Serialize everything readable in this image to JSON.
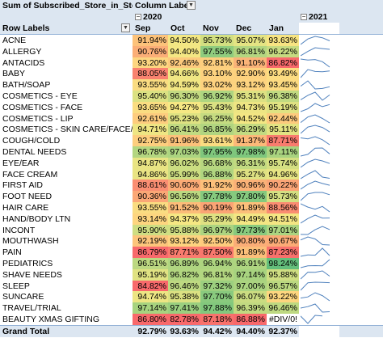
{
  "pivot": {
    "values_title": "Sum of Subscribed_Store_in_Stock",
    "column_labels": "Column Labels",
    "row_labels": "Row Labels",
    "year_2020": "2020",
    "year_2021": "2021",
    "months": [
      "Sep",
      "Oct",
      "Nov",
      "Dec",
      "Jan"
    ],
    "rows": [
      {
        "label": "ACNE",
        "values": [
          "91.94%",
          "94.50%",
          "95.73%",
          "95.07%",
          "93.63%"
        ],
        "colors": [
          "#fcc27a",
          "#f3e783",
          "#d2df81",
          "#e4e483",
          "#f7e482"
        ],
        "spark": [
          91.94,
          94.5,
          95.73,
          95.07,
          93.63
        ]
      },
      {
        "label": "ALLERGY",
        "values": [
          "90.76%",
          "94.40%",
          "97.55%",
          "96.81%",
          "96.22%"
        ],
        "colors": [
          "#fbae77",
          "#f4e783",
          "#8fcc7e",
          "#b3d680",
          "#c6db81"
        ],
        "spark": [
          90.76,
          94.4,
          97.55,
          96.81,
          96.22
        ]
      },
      {
        "label": "ANTACIDS",
        "values": [
          "93.20%",
          "92.46%",
          "92.81%",
          "91.10%",
          "86.82%"
        ],
        "colors": [
          "#fdd680",
          "#fdca7d",
          "#fdcf7e",
          "#fbb378",
          "#f8696b"
        ],
        "spark": [
          93.2,
          92.46,
          92.81,
          91.1,
          86.82
        ]
      },
      {
        "label": "BABY",
        "values": [
          "88.05%",
          "94.66%",
          "93.10%",
          "92.90%",
          "93.49%"
        ],
        "colors": [
          "#f9826f",
          "#efe683",
          "#fdd27f",
          "#fdd17e",
          "#fcdc81"
        ],
        "spark": [
          88.05,
          94.66,
          93.1,
          92.9,
          93.49
        ]
      },
      {
        "label": "BATH/SOAP",
        "values": [
          "93.55%",
          "94.59%",
          "93.02%",
          "93.12%",
          "93.45%"
        ],
        "colors": [
          "#fadc81",
          "#f1e683",
          "#fdd27f",
          "#fdd37f",
          "#fcdb81"
        ],
        "spark": [
          93.55,
          94.59,
          93.02,
          93.12,
          93.45
        ]
      },
      {
        "label": "COSMETICS - EYE",
        "values": [
          "95.40%",
          "96.30%",
          "96.92%",
          "95.31%",
          "96.38%"
        ],
        "colors": [
          "#dbe182",
          "#c3da81",
          "#aed580",
          "#ddE182",
          "#c1da81"
        ],
        "spark": [
          95.4,
          96.3,
          96.92,
          95.31,
          96.38
        ]
      },
      {
        "label": "COSMETICS - FACE",
        "values": [
          "93.65%",
          "94.27%",
          "95.43%",
          "94.73%",
          "95.19%"
        ],
        "colors": [
          "#fadd81",
          "#f6e883",
          "#dae182",
          "#eee583",
          "#e0e282"
        ],
        "spark": [
          93.65,
          94.27,
          95.43,
          94.73,
          95.19
        ]
      },
      {
        "label": "COSMETICS - LIP",
        "values": [
          "92.61%",
          "95.23%",
          "96.25%",
          "94.52%",
          "92.44%"
        ],
        "colors": [
          "#fdcc7e",
          "#dfe282",
          "#c5db81",
          "#f3e683",
          "#fdca7d"
        ],
        "spark": [
          92.61,
          95.23,
          96.25,
          94.52,
          92.44
        ]
      },
      {
        "label": "COSMETICS - SKIN CARE/FACE/EYE",
        "values": [
          "94.71%",
          "96.41%",
          "96.85%",
          "96.29%",
          "95.11%"
        ],
        "colors": [
          "#eee583",
          "#c0da81",
          "#b1d580",
          "#c3da81",
          "#e2e382"
        ],
        "spark": [
          94.71,
          96.41,
          96.85,
          96.29,
          95.11
        ]
      },
      {
        "label": "COUGH/COLD",
        "values": [
          "92.75%",
          "91.96%",
          "93.61%",
          "91.37%",
          "87.71%"
        ],
        "colors": [
          "#fdce7e",
          "#fcc17a",
          "#fadc81",
          "#fcb979",
          "#f97b6e"
        ],
        "spark": [
          92.75,
          91.96,
          93.61,
          91.37,
          87.71
        ]
      },
      {
        "label": "DENTAL NEEDS",
        "values": [
          "96.78%",
          "97.03%",
          "97.95%",
          "97.98%",
          "97.11%"
        ],
        "colors": [
          "#b3d680",
          "#abd480",
          "#7fc77d",
          "#7ec77d",
          "#a8d37f"
        ],
        "spark": [
          96.78,
          97.03,
          97.95,
          97.98,
          97.11
        ]
      },
      {
        "label": "EYE/EAR",
        "values": [
          "94.87%",
          "96.02%",
          "96.68%",
          "96.31%",
          "95.74%"
        ],
        "colors": [
          "#e9e483",
          "#cbdd81",
          "#b7d780",
          "#c2da81",
          "#d4df82"
        ],
        "spark": [
          94.87,
          96.02,
          96.68,
          96.31,
          95.74
        ]
      },
      {
        "label": "FACE CREAM",
        "values": [
          "94.86%",
          "95.99%",
          "96.88%",
          "95.27%",
          "94.96%"
        ],
        "colors": [
          "#e9e483",
          "#ccdd81",
          "#b0d580",
          "#dee182",
          "#e6e483"
        ],
        "spark": [
          94.86,
          95.99,
          96.88,
          95.27,
          94.96
        ]
      },
      {
        "label": "FIRST AID",
        "values": [
          "88.61%",
          "90.60%",
          "91.92%",
          "90.96%",
          "90.22%"
        ],
        "colors": [
          "#fa8e72",
          "#fbab76",
          "#fcc07a",
          "#fbb177",
          "#fba576"
        ],
        "spark": [
          88.61,
          90.6,
          91.92,
          90.96,
          90.22
        ]
      },
      {
        "label": "FOOT NEED",
        "values": [
          "90.36%",
          "96.56%",
          "97.78%",
          "97.80%",
          "95.73%"
        ],
        "colors": [
          "#fba776",
          "#bbd880",
          "#86c97e",
          "#85c97e",
          "#d4df82"
        ],
        "spark": [
          90.36,
          96.56,
          97.78,
          97.8,
          95.73
        ]
      },
      {
        "label": "HAIR CARE",
        "values": [
          "93.55%",
          "91.52%",
          "90.19%",
          "91.89%",
          "88.56%"
        ],
        "colors": [
          "#fadc81",
          "#fcbc79",
          "#fba475",
          "#fcbf7a",
          "#fa8c72"
        ],
        "spark": [
          93.55,
          91.52,
          90.19,
          91.89,
          88.56
        ]
      },
      {
        "label": "HAND/BODY LTN",
        "values": [
          "93.14%",
          "94.37%",
          "95.29%",
          "94.49%",
          "94.51%"
        ],
        "colors": [
          "#fdd57f",
          "#f5e783",
          "#dee182",
          "#f3e683",
          "#f3e683"
        ],
        "spark": [
          93.14,
          94.37,
          95.29,
          94.49,
          94.51
        ]
      },
      {
        "label": "INCONT",
        "values": [
          "95.90%",
          "95.88%",
          "96.97%",
          "97.73%",
          "97.01%"
        ],
        "colors": [
          "#cedd82",
          "#cfde82",
          "#acd480",
          "#88ca7e",
          "#abd480"
        ],
        "spark": [
          95.9,
          95.88,
          96.97,
          97.73,
          97.01
        ]
      },
      {
        "label": "MOUTHWASH",
        "values": [
          "92.19%",
          "93.12%",
          "92.50%",
          "90.80%",
          "90.67%"
        ],
        "colors": [
          "#fcc57b",
          "#fdd37f",
          "#fdcb7d",
          "#fbad77",
          "#fbab76"
        ],
        "spark": [
          92.19,
          93.12,
          92.5,
          90.8,
          90.67
        ]
      },
      {
        "label": "PAIN",
        "values": [
          "86.79%",
          "87.71%",
          "87.50%",
          "91.89%",
          "87.23%"
        ],
        "colors": [
          "#f8696b",
          "#f97b6e",
          "#f9776d",
          "#fcbf7a",
          "#f8716c"
        ],
        "spark": [
          86.79,
          87.71,
          87.5,
          91.89,
          87.23
        ]
      },
      {
        "label": "PEDIATRICS",
        "values": [
          "96.51%",
          "96.89%",
          "96.94%",
          "96.91%",
          "98.24%"
        ],
        "colors": [
          "#bcd881",
          "#afd580",
          "#add480",
          "#aed580",
          "#63be7b"
        ],
        "spark": [
          96.51,
          96.89,
          96.94,
          96.91,
          98.24
        ]
      },
      {
        "label": "SHAVE NEEDS",
        "values": [
          "95.19%",
          "96.82%",
          "96.81%",
          "97.14%",
          "95.88%"
        ],
        "colors": [
          "#e0e282",
          "#b2d680",
          "#b3d680",
          "#a7d37f",
          "#cfde82"
        ],
        "spark": [
          95.19,
          96.82,
          96.81,
          97.14,
          95.88
        ]
      },
      {
        "label": "SLEEP",
        "values": [
          "84.82%",
          "96.46%",
          "97.32%",
          "97.00%",
          "96.57%"
        ],
        "colors": [
          "#f8696b",
          "#bed981",
          "#9ccf7f",
          "#abd480",
          "#bbd880"
        ],
        "spark": [
          84.82,
          96.46,
          97.32,
          97.0,
          96.57
        ]
      },
      {
        "label": "SUNCARE",
        "values": [
          "94.74%",
          "95.38%",
          "97.70%",
          "96.07%",
          "93.22%"
        ],
        "colors": [
          "#ede583",
          "#dbe182",
          "#89ca7e",
          "#cadc81",
          "#fdd67f"
        ],
        "spark": [
          94.74,
          95.38,
          97.7,
          96.07,
          93.22
        ]
      },
      {
        "label": "TRAVEL/TRIAL",
        "values": [
          "97.14%",
          "97.41%",
          "97.88%",
          "96.39%",
          "96.46%"
        ],
        "colors": [
          "#a7d37f",
          "#9acf7f",
          "#82c87d",
          "#c1da81",
          "#bed981"
        ],
        "spark": [
          97.14,
          97.41,
          97.88,
          96.39,
          96.46
        ]
      },
      {
        "label": "BEAUTY XMAS GIFTING",
        "values": [
          "86.80%",
          "82.78%",
          "87.18%",
          "86.88%",
          "#DIV/0!"
        ],
        "colors": [
          "#f8696b",
          "#f8696b",
          "#f8716c",
          "#f8696b",
          "#ffffff"
        ],
        "spark": [
          86.8,
          82.78,
          87.18,
          86.88
        ]
      }
    ],
    "grand_total": {
      "label": "Grand Total",
      "values": [
        "92.79%",
        "93.63%",
        "94.42%",
        "94.40%",
        "92.37%"
      ]
    }
  }
}
